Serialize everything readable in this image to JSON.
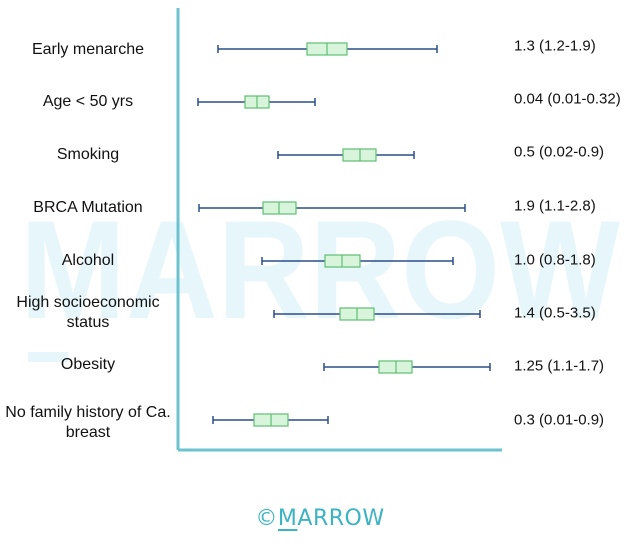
{
  "chart_data": {
    "type": "forest",
    "title": "",
    "xlabel": "",
    "ylabel": "",
    "rows": [
      {
        "label": "Early menarche",
        "value_text": "1.3 (1.2-1.9)"
      },
      {
        "label": "Age < 50 yrs",
        "value_text": "0.04 (0.01-0.32)"
      },
      {
        "label": "Smoking",
        "value_text": "0.5 (0.02-0.9)"
      },
      {
        "label": "BRCA Mutation",
        "value_text": "1.9 (1.1-2.8)"
      },
      {
        "label": "Alcohol",
        "value_text": "1.0 (0.8-1.8)"
      },
      {
        "label": "High socioeconomic status",
        "value_text": "1.4 (0.5-3.5)"
      },
      {
        "label": "Obesity",
        "value_text": "1.25 (1.1-1.7)"
      },
      {
        "label": "No family history of Ca. breast",
        "value_text": "0.3 (0.01-0.9)"
      }
    ]
  },
  "watermark": {
    "text": "MARROW"
  },
  "footer": {
    "copyright_symbol": "©",
    "brand_first": "M",
    "brand_rest": "ARROW"
  },
  "colors": {
    "axis": "#6cc3cf",
    "whisker": "#2b4f8a",
    "box_fill": "#d8f5dc",
    "box_stroke": "#5fbf73",
    "watermark": "#e6f6fa",
    "brand": "#3bb3c3"
  }
}
